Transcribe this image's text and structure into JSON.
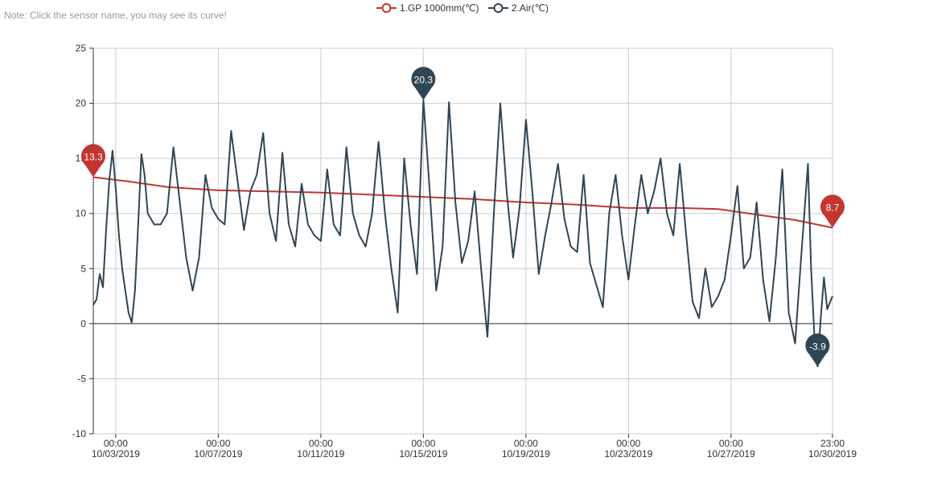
{
  "note": "Note: Click the sensor name, you may see its curve!",
  "legend": [
    {
      "label": "1.GP 1000mm(℃)",
      "color": "#c23531"
    },
    {
      "label": "2.Air(℃)",
      "color": "#2f4554"
    }
  ],
  "chart_data": {
    "type": "line",
    "ylim": [
      -10,
      25
    ],
    "yticks": [
      25,
      20,
      15,
      10,
      5,
      0,
      -5,
      -10
    ],
    "xlim": [
      "2019-10-02 03:00",
      "2019-10-30 23:00"
    ],
    "xticks": [
      {
        "t": "2019-10-03 00:00",
        "time": "00:00",
        "date": "10/03/2019"
      },
      {
        "t": "2019-10-07 00:00",
        "time": "00:00",
        "date": "10/07/2019"
      },
      {
        "t": "2019-10-11 00:00",
        "time": "00:00",
        "date": "10/11/2019"
      },
      {
        "t": "2019-10-15 00:00",
        "time": "00:00",
        "date": "10/15/2019"
      },
      {
        "t": "2019-10-19 00:00",
        "time": "00:00",
        "date": "10/19/2019"
      },
      {
        "t": "2019-10-23 00:00",
        "time": "00:00",
        "date": "10/23/2019"
      },
      {
        "t": "2019-10-27 00:00",
        "time": "00:00",
        "date": "10/27/2019"
      },
      {
        "t": "2019-10-30 23:00",
        "time": "23:00",
        "date": "10/30/2019"
      }
    ],
    "series": [
      {
        "name": "1.GP 1000mm(℃)",
        "color": "#c23531",
        "points": [
          [
            "2019-10-02 03:00",
            13.3
          ],
          [
            "2019-10-03 12:00",
            12.9
          ],
          [
            "2019-10-05 00:00",
            12.4
          ],
          [
            "2019-10-07 00:00",
            12.1
          ],
          [
            "2019-10-09 00:00",
            12.0
          ],
          [
            "2019-10-11 00:00",
            11.9
          ],
          [
            "2019-10-13 00:00",
            11.7
          ],
          [
            "2019-10-15 00:00",
            11.5
          ],
          [
            "2019-10-17 00:00",
            11.3
          ],
          [
            "2019-10-19 00:00",
            11.0
          ],
          [
            "2019-10-21 00:00",
            10.8
          ],
          [
            "2019-10-23 00:00",
            10.5
          ],
          [
            "2019-10-25 00:00",
            10.5
          ],
          [
            "2019-10-26 12:00",
            10.4
          ],
          [
            "2019-10-28 00:00",
            9.9
          ],
          [
            "2019-10-29 12:00",
            9.4
          ],
          [
            "2019-10-30 23:00",
            8.7
          ]
        ],
        "markers": [
          {
            "t": "2019-10-02 03:00",
            "value": 13.3,
            "label": "13.3"
          },
          {
            "t": "2019-10-30 23:00",
            "value": 8.7,
            "label": "8.7"
          }
        ]
      },
      {
        "name": "2.Air(℃)",
        "color": "#2f4554",
        "points": [
          [
            "2019-10-02 03:00",
            1.7
          ],
          [
            "2019-10-02 06:00",
            2.2
          ],
          [
            "2019-10-02 09:00",
            4.5
          ],
          [
            "2019-10-02 12:00",
            3.3
          ],
          [
            "2019-10-02 15:00",
            8.5
          ],
          [
            "2019-10-02 18:00",
            13.0
          ],
          [
            "2019-10-02 21:00",
            15.7
          ],
          [
            "2019-10-03 00:00",
            12.3
          ],
          [
            "2019-10-03 03:00",
            8.0
          ],
          [
            "2019-10-03 06:00",
            5.0
          ],
          [
            "2019-10-03 09:00",
            3.0
          ],
          [
            "2019-10-03 12:00",
            1.0
          ],
          [
            "2019-10-03 15:00",
            0.1
          ],
          [
            "2019-10-03 18:00",
            3.0
          ],
          [
            "2019-10-03 21:00",
            9.0
          ],
          [
            "2019-10-04 00:00",
            15.4
          ],
          [
            "2019-10-04 03:00",
            13.5
          ],
          [
            "2019-10-04 06:00",
            10.0
          ],
          [
            "2019-10-04 12:00",
            9.0
          ],
          [
            "2019-10-04 18:00",
            9.0
          ],
          [
            "2019-10-05 00:00",
            10.0
          ],
          [
            "2019-10-05 06:00",
            16.0
          ],
          [
            "2019-10-05 12:00",
            11.0
          ],
          [
            "2019-10-05 18:00",
            6.0
          ],
          [
            "2019-10-06 00:00",
            3.0
          ],
          [
            "2019-10-06 06:00",
            6.0
          ],
          [
            "2019-10-06 12:00",
            13.5
          ],
          [
            "2019-10-06 18:00",
            10.5
          ],
          [
            "2019-10-07 00:00",
            9.5
          ],
          [
            "2019-10-07 06:00",
            9.0
          ],
          [
            "2019-10-07 12:00",
            17.5
          ],
          [
            "2019-10-07 18:00",
            13.0
          ],
          [
            "2019-10-08 00:00",
            8.5
          ],
          [
            "2019-10-08 06:00",
            12.0
          ],
          [
            "2019-10-08 12:00",
            13.5
          ],
          [
            "2019-10-08 18:00",
            17.3
          ],
          [
            "2019-10-09 00:00",
            10.0
          ],
          [
            "2019-10-09 06:00",
            7.5
          ],
          [
            "2019-10-09 12:00",
            15.5
          ],
          [
            "2019-10-09 18:00",
            9.0
          ],
          [
            "2019-10-10 00:00",
            7.0
          ],
          [
            "2019-10-10 06:00",
            12.7
          ],
          [
            "2019-10-10 12:00",
            9.0
          ],
          [
            "2019-10-10 18:00",
            8.0
          ],
          [
            "2019-10-11 00:00",
            7.5
          ],
          [
            "2019-10-11 06:00",
            14.0
          ],
          [
            "2019-10-11 12:00",
            9.0
          ],
          [
            "2019-10-11 18:00",
            8.0
          ],
          [
            "2019-10-12 00:00",
            16.0
          ],
          [
            "2019-10-12 06:00",
            10.0
          ],
          [
            "2019-10-12 12:00",
            8.0
          ],
          [
            "2019-10-12 18:00",
            7.0
          ],
          [
            "2019-10-13 00:00",
            10.0
          ],
          [
            "2019-10-13 06:00",
            16.5
          ],
          [
            "2019-10-13 12:00",
            10.0
          ],
          [
            "2019-10-13 18:00",
            5.0
          ],
          [
            "2019-10-14 00:00",
            1.0
          ],
          [
            "2019-10-14 06:00",
            15.0
          ],
          [
            "2019-10-14 12:00",
            9.0
          ],
          [
            "2019-10-14 18:00",
            4.5
          ],
          [
            "2019-10-15 00:00",
            20.3
          ],
          [
            "2019-10-15 06:00",
            12.0
          ],
          [
            "2019-10-15 12:00",
            3.0
          ],
          [
            "2019-10-15 18:00",
            7.0
          ],
          [
            "2019-10-16 00:00",
            20.1
          ],
          [
            "2019-10-16 06:00",
            11.0
          ],
          [
            "2019-10-16 12:00",
            5.5
          ],
          [
            "2019-10-16 18:00",
            7.5
          ],
          [
            "2019-10-17 00:00",
            12.0
          ],
          [
            "2019-10-17 06:00",
            5.0
          ],
          [
            "2019-10-17 12:00",
            -1.2
          ],
          [
            "2019-10-17 18:00",
            10.0
          ],
          [
            "2019-10-18 00:00",
            20.0
          ],
          [
            "2019-10-18 06:00",
            12.0
          ],
          [
            "2019-10-18 12:00",
            6.0
          ],
          [
            "2019-10-18 18:00",
            10.5
          ],
          [
            "2019-10-19 00:00",
            18.5
          ],
          [
            "2019-10-19 06:00",
            12.0
          ],
          [
            "2019-10-19 12:00",
            4.5
          ],
          [
            "2019-10-19 18:00",
            8.0
          ],
          [
            "2019-10-20 00:00",
            11.0
          ],
          [
            "2019-10-20 06:00",
            14.5
          ],
          [
            "2019-10-20 12:00",
            9.5
          ],
          [
            "2019-10-20 18:00",
            7.0
          ],
          [
            "2019-10-21 00:00",
            6.5
          ],
          [
            "2019-10-21 06:00",
            13.5
          ],
          [
            "2019-10-21 12:00",
            5.5
          ],
          [
            "2019-10-21 18:00",
            3.5
          ],
          [
            "2019-10-22 00:00",
            1.5
          ],
          [
            "2019-10-22 06:00",
            10.0
          ],
          [
            "2019-10-22 12:00",
            13.5
          ],
          [
            "2019-10-22 18:00",
            8.0
          ],
          [
            "2019-10-23 00:00",
            4.0
          ],
          [
            "2019-10-23 06:00",
            9.0
          ],
          [
            "2019-10-23 12:00",
            13.5
          ],
          [
            "2019-10-23 18:00",
            10.0
          ],
          [
            "2019-10-24 00:00",
            12.0
          ],
          [
            "2019-10-24 06:00",
            15.0
          ],
          [
            "2019-10-24 12:00",
            10.0
          ],
          [
            "2019-10-24 18:00",
            8.0
          ],
          [
            "2019-10-25 00:00",
            14.5
          ],
          [
            "2019-10-25 06:00",
            8.0
          ],
          [
            "2019-10-25 12:00",
            2.0
          ],
          [
            "2019-10-25 18:00",
            0.5
          ],
          [
            "2019-10-26 00:00",
            5.0
          ],
          [
            "2019-10-26 06:00",
            1.5
          ],
          [
            "2019-10-26 12:00",
            2.5
          ],
          [
            "2019-10-26 18:00",
            4.0
          ],
          [
            "2019-10-27 00:00",
            8.0
          ],
          [
            "2019-10-27 06:00",
            12.5
          ],
          [
            "2019-10-27 12:00",
            5.0
          ],
          [
            "2019-10-27 18:00",
            6.0
          ],
          [
            "2019-10-28 00:00",
            11.0
          ],
          [
            "2019-10-28 06:00",
            4.0
          ],
          [
            "2019-10-28 12:00",
            0.2
          ],
          [
            "2019-10-28 18:00",
            6.0
          ],
          [
            "2019-10-29 00:00",
            14.0
          ],
          [
            "2019-10-29 06:00",
            1.0
          ],
          [
            "2019-10-29 12:00",
            -1.8
          ],
          [
            "2019-10-29 18:00",
            6.5
          ],
          [
            "2019-10-30 00:00",
            14.5
          ],
          [
            "2019-10-30 03:00",
            5.0
          ],
          [
            "2019-10-30 06:00",
            -1.0
          ],
          [
            "2019-10-30 09:00",
            -3.9
          ],
          [
            "2019-10-30 12:00",
            0.5
          ],
          [
            "2019-10-30 15:00",
            4.2
          ],
          [
            "2019-10-30 18:00",
            1.3
          ],
          [
            "2019-10-30 23:00",
            2.5
          ]
        ],
        "markers": [
          {
            "t": "2019-10-15 00:00",
            "value": 20.3,
            "label": "20.3"
          },
          {
            "t": "2019-10-30 09:00",
            "value": -3.9,
            "label": "-3.9"
          }
        ]
      }
    ]
  }
}
